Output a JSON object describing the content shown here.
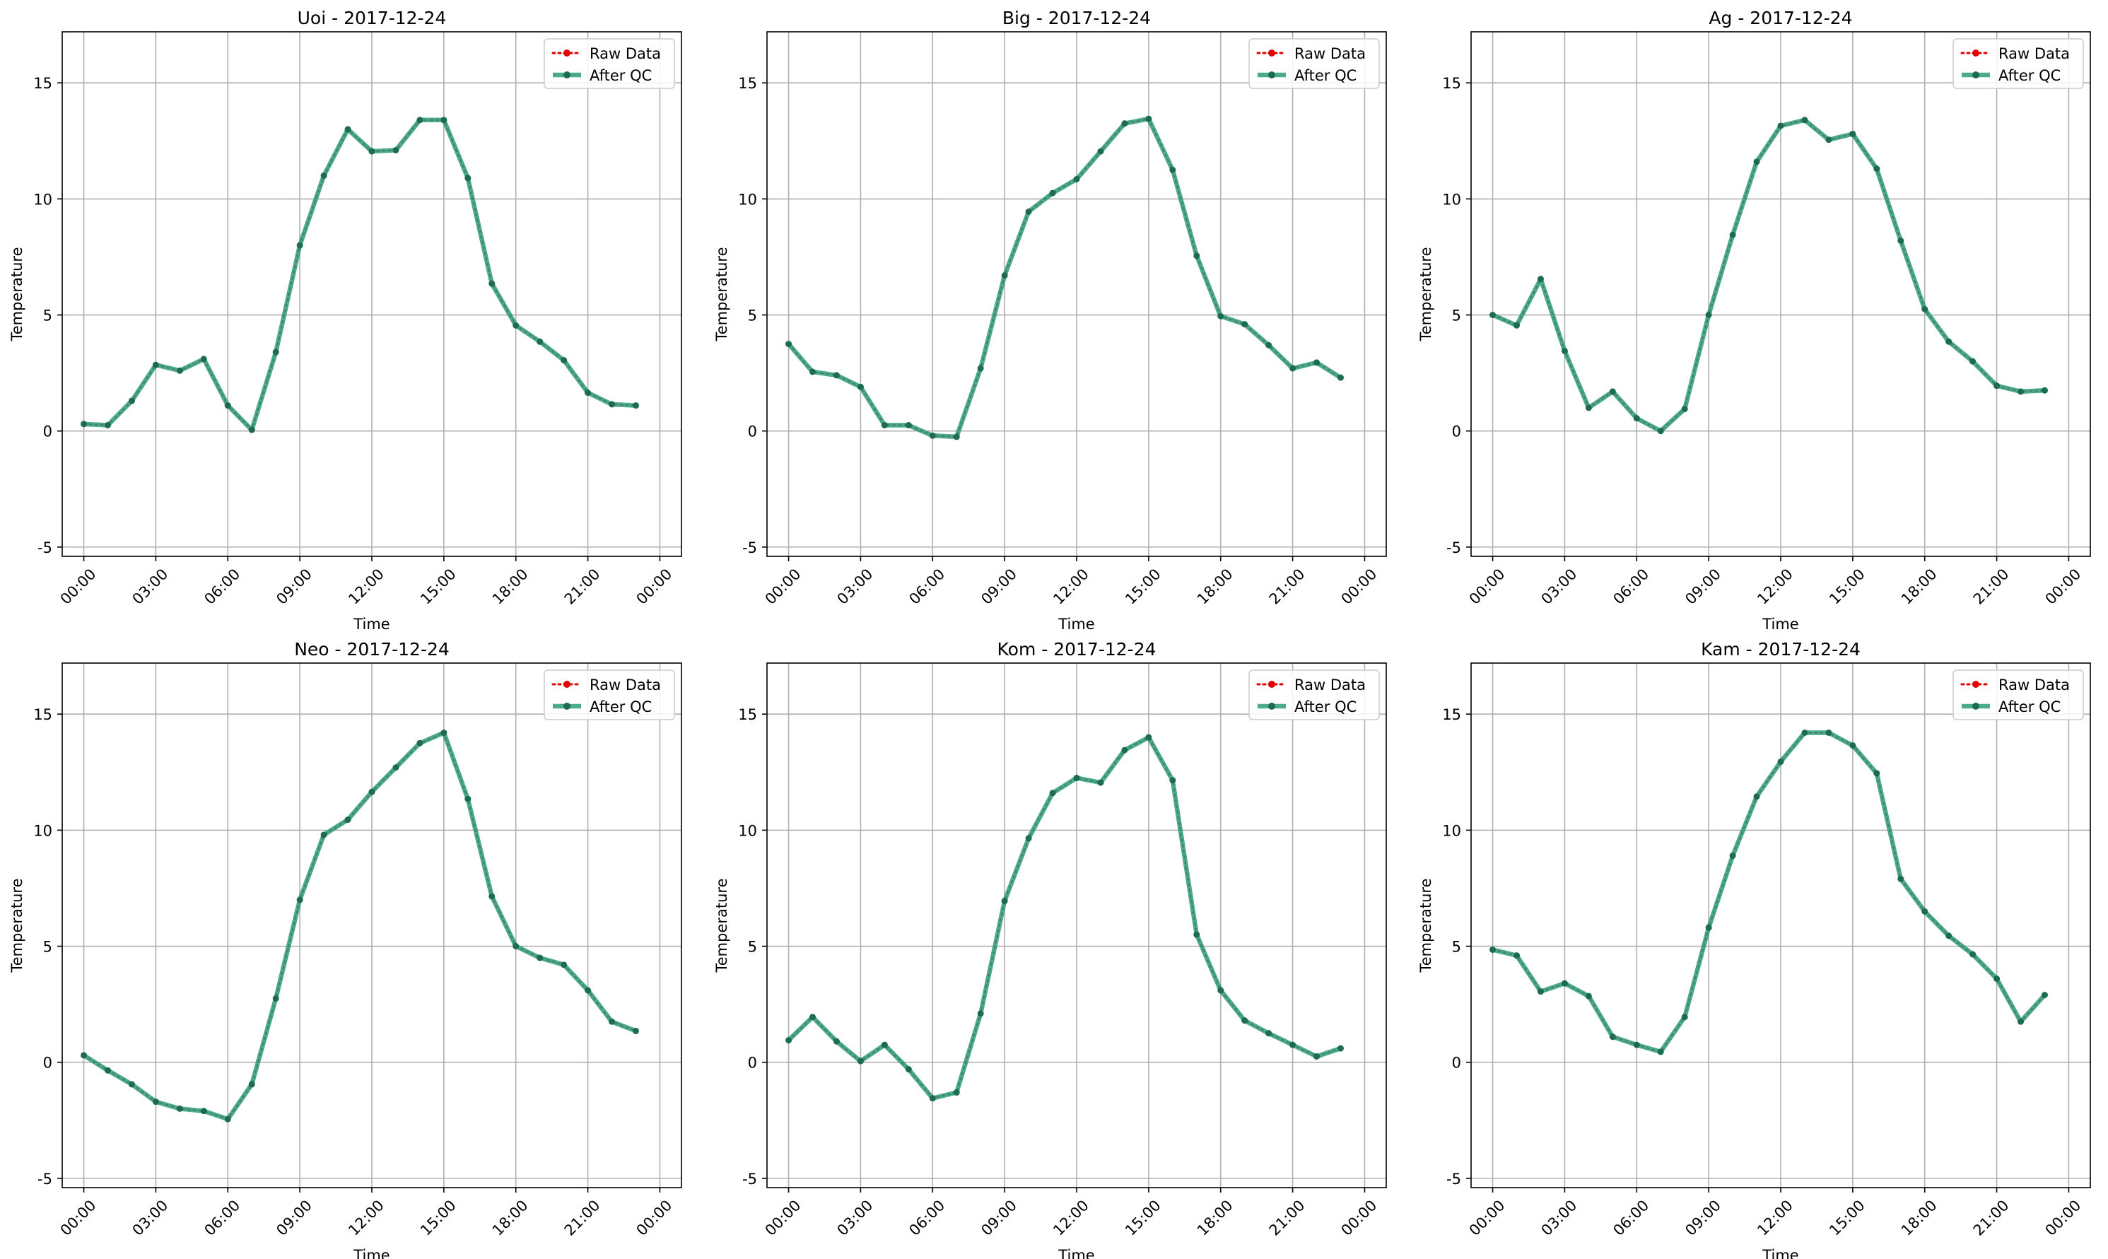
{
  "figure": {
    "xlabel": "Time",
    "ylabel": "Temperature",
    "legend": {
      "placement": "upper right",
      "raw_label": "Raw Data",
      "qc_label": "After QC"
    },
    "colors": {
      "raw": "#e00000",
      "qc": "#2a9d78",
      "qc_marker": "#1d6b52",
      "grid": "#b0b0b0",
      "axis": "#000000"
    }
  },
  "chart_data": [
    {
      "type": "line",
      "title": "Uoi - 2017-12-24",
      "xlabel": "Time",
      "ylabel": "Temperature",
      "x_ticks": [
        "00:00",
        "03:00",
        "06:00",
        "09:00",
        "12:00",
        "15:00",
        "18:00",
        "21:00",
        "00:00"
      ],
      "y_ticks": [
        -5,
        0,
        5,
        10,
        15
      ],
      "ylim": [
        -5.4,
        17.2
      ],
      "grid": true,
      "x_hours": [
        0,
        1,
        2,
        3,
        4,
        5,
        6,
        7,
        8,
        9,
        10,
        11,
        12,
        13,
        14,
        15,
        16,
        17,
        18,
        19,
        20,
        21,
        22,
        23
      ],
      "series": [
        {
          "name": "Raw Data",
          "values": [
            0.3,
            0.25,
            1.3,
            2.85,
            2.6,
            3.1,
            1.1,
            0.05,
            3.4,
            8.0,
            11.0,
            13.0,
            12.05,
            12.1,
            13.4,
            13.4,
            10.9,
            6.35,
            4.55,
            3.85,
            3.05,
            1.65,
            1.15,
            1.1
          ]
        },
        {
          "name": "After QC",
          "values": [
            0.3,
            0.25,
            1.3,
            2.85,
            2.6,
            3.1,
            1.1,
            0.05,
            3.4,
            8.0,
            11.0,
            13.0,
            12.05,
            12.1,
            13.4,
            13.4,
            10.9,
            6.35,
            4.55,
            3.85,
            3.05,
            1.65,
            1.15,
            1.1
          ]
        }
      ]
    },
    {
      "type": "line",
      "title": "Big - 2017-12-24",
      "xlabel": "Time",
      "ylabel": "Temperature",
      "x_ticks": [
        "00:00",
        "03:00",
        "06:00",
        "09:00",
        "12:00",
        "15:00",
        "18:00",
        "21:00",
        "00:00"
      ],
      "y_ticks": [
        -5,
        0,
        5,
        10,
        15
      ],
      "ylim": [
        -5.4,
        17.2
      ],
      "grid": true,
      "x_hours": [
        0,
        1,
        2,
        3,
        4,
        5,
        6,
        7,
        8,
        9,
        10,
        11,
        12,
        13,
        14,
        15,
        16,
        17,
        18,
        19,
        20,
        21,
        22,
        23
      ],
      "series": [
        {
          "name": "Raw Data",
          "values": [
            3.75,
            2.55,
            2.4,
            1.9,
            0.25,
            0.25,
            -0.2,
            -0.25,
            2.7,
            6.7,
            9.45,
            10.25,
            10.85,
            12.05,
            13.25,
            13.45,
            11.25,
            7.55,
            4.95,
            4.6,
            3.7,
            2.7,
            2.95,
            2.3
          ]
        },
        {
          "name": "After QC",
          "values": [
            3.75,
            2.55,
            2.4,
            1.9,
            0.25,
            0.25,
            -0.2,
            -0.25,
            2.7,
            6.7,
            9.45,
            10.25,
            10.85,
            12.05,
            13.25,
            13.45,
            11.25,
            7.55,
            4.95,
            4.6,
            3.7,
            2.7,
            2.95,
            2.3
          ]
        }
      ]
    },
    {
      "type": "line",
      "title": "Ag - 2017-12-24",
      "xlabel": "Time",
      "ylabel": "Temperature",
      "x_ticks": [
        "00:00",
        "03:00",
        "06:00",
        "09:00",
        "12:00",
        "15:00",
        "18:00",
        "21:00",
        "00:00"
      ],
      "y_ticks": [
        -5,
        0,
        5,
        10,
        15
      ],
      "ylim": [
        -5.4,
        17.2
      ],
      "grid": true,
      "x_hours": [
        0,
        1,
        2,
        3,
        4,
        5,
        6,
        7,
        8,
        9,
        10,
        11,
        12,
        13,
        14,
        15,
        16,
        17,
        18,
        19,
        20,
        21,
        22,
        23
      ],
      "series": [
        {
          "name": "Raw Data",
          "values": [
            5.0,
            4.55,
            6.55,
            3.45,
            1.0,
            1.7,
            0.55,
            0.0,
            0.95,
            5.0,
            8.45,
            11.6,
            13.15,
            13.4,
            12.55,
            12.8,
            11.3,
            8.2,
            5.25,
            3.85,
            3.0,
            1.95,
            1.7,
            1.75
          ]
        },
        {
          "name": "After QC",
          "values": [
            5.0,
            4.55,
            6.55,
            3.45,
            1.0,
            1.7,
            0.55,
            0.0,
            0.95,
            5.0,
            8.45,
            11.6,
            13.15,
            13.4,
            12.55,
            12.8,
            11.3,
            8.2,
            5.25,
            3.85,
            3.0,
            1.95,
            1.7,
            1.75
          ]
        }
      ]
    },
    {
      "type": "line",
      "title": "Neo - 2017-12-24",
      "xlabel": "Time",
      "ylabel": "Temperature",
      "x_ticks": [
        "00:00",
        "03:00",
        "06:00",
        "09:00",
        "12:00",
        "15:00",
        "18:00",
        "21:00",
        "00:00"
      ],
      "y_ticks": [
        -5,
        0,
        5,
        10,
        15
      ],
      "ylim": [
        -5.4,
        17.2
      ],
      "grid": true,
      "x_hours": [
        0,
        1,
        2,
        3,
        4,
        5,
        6,
        7,
        8,
        9,
        10,
        11,
        12,
        13,
        14,
        15,
        16,
        17,
        18,
        19,
        20,
        21,
        22,
        23
      ],
      "series": [
        {
          "name": "Raw Data",
          "values": [
            0.3,
            -0.35,
            -0.95,
            -1.7,
            -2.0,
            -2.1,
            -2.45,
            -0.95,
            2.75,
            7.0,
            9.8,
            10.45,
            11.65,
            12.7,
            13.75,
            14.2,
            11.35,
            7.15,
            5.0,
            4.5,
            4.2,
            3.1,
            1.75,
            1.35
          ]
        },
        {
          "name": "After QC",
          "values": [
            0.3,
            -0.35,
            -0.95,
            -1.7,
            -2.0,
            -2.1,
            -2.45,
            -0.95,
            2.75,
            7.0,
            9.8,
            10.45,
            11.65,
            12.7,
            13.75,
            14.2,
            11.35,
            7.15,
            5.0,
            4.5,
            4.2,
            3.1,
            1.75,
            1.35
          ]
        }
      ]
    },
    {
      "type": "line",
      "title": "Kom - 2017-12-24",
      "xlabel": "Time",
      "ylabel": "Temperature",
      "x_ticks": [
        "00:00",
        "03:00",
        "06:00",
        "09:00",
        "12:00",
        "15:00",
        "18:00",
        "21:00",
        "00:00"
      ],
      "y_ticks": [
        -5,
        0,
        5,
        10,
        15
      ],
      "ylim": [
        -5.4,
        17.2
      ],
      "grid": true,
      "x_hours": [
        0,
        1,
        2,
        3,
        4,
        5,
        6,
        7,
        8,
        9,
        10,
        11,
        12,
        13,
        14,
        15,
        16,
        17,
        18,
        19,
        20,
        21,
        22,
        23
      ],
      "series": [
        {
          "name": "Raw Data",
          "values": [
            0.95,
            1.95,
            0.9,
            0.05,
            0.75,
            -0.3,
            -1.55,
            -1.3,
            2.1,
            6.95,
            9.65,
            11.6,
            12.25,
            12.05,
            13.45,
            14.0,
            12.15,
            5.5,
            3.1,
            1.8,
            1.25,
            0.75,
            0.25,
            0.6
          ]
        },
        {
          "name": "After QC",
          "values": [
            0.95,
            1.95,
            0.9,
            0.05,
            0.75,
            -0.3,
            -1.55,
            -1.3,
            2.1,
            6.95,
            9.65,
            11.6,
            12.25,
            12.05,
            13.45,
            14.0,
            12.15,
            5.5,
            3.1,
            1.8,
            1.25,
            0.75,
            0.25,
            0.6
          ]
        }
      ]
    },
    {
      "type": "line",
      "title": "Kam - 2017-12-24",
      "xlabel": "Time",
      "ylabel": "Temperature",
      "x_ticks": [
        "00:00",
        "03:00",
        "06:00",
        "09:00",
        "12:00",
        "15:00",
        "18:00",
        "21:00",
        "00:00"
      ],
      "y_ticks": [
        -5,
        0,
        5,
        10,
        15
      ],
      "ylim": [
        -5.4,
        17.2
      ],
      "grid": true,
      "x_hours": [
        0,
        1,
        2,
        3,
        4,
        5,
        6,
        7,
        8,
        9,
        10,
        11,
        12,
        13,
        14,
        15,
        16,
        17,
        18,
        19,
        20,
        21,
        22,
        23
      ],
      "series": [
        {
          "name": "Raw Data",
          "values": [
            4.85,
            4.6,
            3.05,
            3.4,
            2.85,
            1.1,
            0.75,
            0.45,
            1.95,
            5.8,
            8.9,
            11.45,
            12.95,
            14.2,
            14.2,
            13.65,
            12.45,
            7.9,
            6.5,
            5.45,
            4.65,
            3.6,
            1.75,
            2.9
          ]
        },
        {
          "name": "After QC",
          "values": [
            4.85,
            4.6,
            3.05,
            3.4,
            2.85,
            1.1,
            0.75,
            0.45,
            1.95,
            5.8,
            8.9,
            11.45,
            12.95,
            14.2,
            14.2,
            13.65,
            12.45,
            7.9,
            6.5,
            5.45,
            4.65,
            3.6,
            1.75,
            2.9
          ]
        }
      ]
    }
  ]
}
